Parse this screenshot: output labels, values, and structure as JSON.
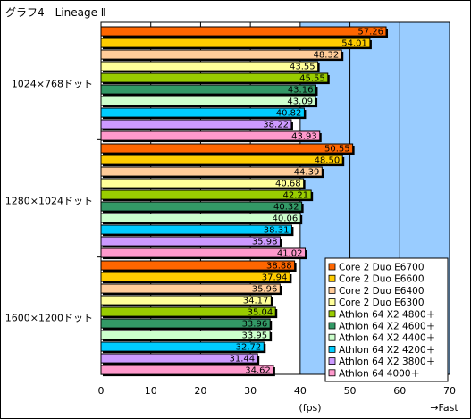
{
  "chart_data": {
    "type": "bar",
    "orientation": "horizontal",
    "title": "グラフ4　Lineage Ⅱ",
    "unit_label": "(fps)",
    "direction_label": "→Fast",
    "xlim": [
      0,
      70
    ],
    "x_ticks": [
      "0",
      "10",
      "20",
      "30",
      "40",
      "50",
      "60",
      "70"
    ],
    "grid": true,
    "legend_position": "right-bottom",
    "categories": [
      "1024×768ドット",
      "1280×1024ドット",
      "1600×1200ドット"
    ],
    "series": [
      {
        "name": "Core 2 Duo E6700",
        "color": "#ff6600",
        "values": [
          57.26,
          50.55,
          38.88
        ]
      },
      {
        "name": "Core 2 Duo E6600",
        "color": "#ffcc00",
        "values": [
          54.01,
          48.5,
          37.94
        ]
      },
      {
        "name": "Core 2 Duo E6400",
        "color": "#ffcc99",
        "values": [
          48.32,
          44.39,
          35.96
        ]
      },
      {
        "name": "Core 2 Duo E6300",
        "color": "#ffff99",
        "values": [
          43.55,
          40.68,
          34.17
        ]
      },
      {
        "name": "Athlon 64 X2 4800＋",
        "color": "#99cc00",
        "values": [
          45.55,
          42.21,
          35.04
        ]
      },
      {
        "name": "Athlon 64 X2 4600＋",
        "color": "#339966",
        "values": [
          43.16,
          40.32,
          33.96
        ]
      },
      {
        "name": "Athlon 64 X2 4400＋",
        "color": "#ccffcc",
        "values": [
          43.09,
          40.06,
          33.95
        ]
      },
      {
        "name": "Athlon 64 X2 4200＋",
        "color": "#00ccff",
        "values": [
          40.82,
          38.31,
          32.72
        ]
      },
      {
        "name": "Athlon 64 X2 3800＋",
        "color": "#cc99ff",
        "values": [
          38.22,
          35.98,
          31.44
        ]
      },
      {
        "name": "Athlon 64 4000＋",
        "color": "#ff99cc",
        "values": [
          43.93,
          41.02,
          34.62
        ]
      }
    ],
    "value_labels": [
      [
        "57.26",
        "54.01",
        "48.32",
        "43.55",
        "45.55",
        "43.16",
        "43.09",
        "40.82",
        "38.22",
        "43.93"
      ],
      [
        "50.55",
        "48.50",
        "44.39",
        "40.68",
        "42.21",
        "40.32",
        "40.06",
        "38.31",
        "35.98",
        "41.02"
      ],
      [
        "38.88",
        "37.94",
        "35.96",
        "34.17",
        "35.04",
        "33.96",
        "33.95",
        "32.72",
        "31.44",
        "34.62"
      ]
    ],
    "colors": {
      "plot_background": "#99ccff",
      "left_background": "#ffffff",
      "gridline": "#000000",
      "bar_border": "#000000"
    }
  }
}
